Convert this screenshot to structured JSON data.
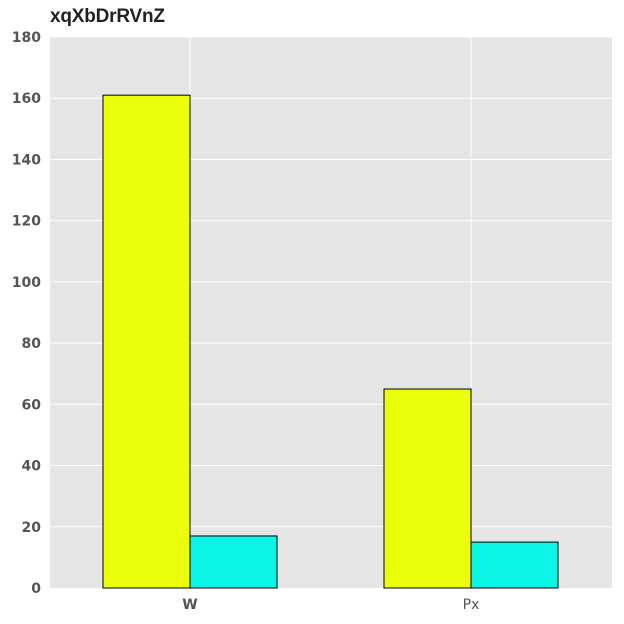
{
  "chart_data": {
    "type": "bar",
    "title": "xqXbDrRVnZ",
    "categories": [
      "W",
      "Px"
    ],
    "series": [
      {
        "values": [
          161,
          65
        ],
        "color": "#ebff0a"
      },
      {
        "values": [
          17,
          15
        ],
        "color": "#0af5e6"
      }
    ],
    "ylim": [
      0,
      180
    ],
    "yticks": [
      0,
      20,
      40,
      60,
      80,
      100,
      120,
      140,
      160,
      180
    ],
    "grid": true,
    "background": "#e5e5e5"
  }
}
